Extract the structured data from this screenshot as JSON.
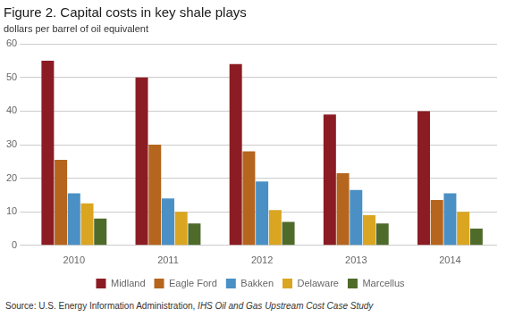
{
  "chart_data": {
    "type": "bar",
    "title": "Figure 2. Capital costs in key shale plays",
    "subtitle": "dollars per barrel of oil equivalent",
    "source": [
      "Source: U.S. Energy Information Administration, ",
      "IHS Oil and Gas Upstream Cost Case Study"
    ],
    "categories": [
      "2010",
      "2011",
      "2012",
      "2013",
      "2014"
    ],
    "series": [
      {
        "name": "Midland",
        "color": "#8B1C24",
        "values": [
          55,
          50,
          54,
          39,
          40
        ]
      },
      {
        "name": "Eagle Ford",
        "color": "#B5651D",
        "values": [
          25.5,
          30,
          28,
          21.5,
          13.5
        ]
      },
      {
        "name": "Bakken",
        "color": "#4A90C4",
        "values": [
          15.5,
          14,
          19,
          16.5,
          15.5
        ]
      },
      {
        "name": "Delaware",
        "color": "#DAA520",
        "values": [
          12.5,
          10,
          10.5,
          9,
          10
        ]
      },
      {
        "name": "Marcellus",
        "color": "#4F6B2A",
        "values": [
          8,
          6.5,
          7,
          6.5,
          5
        ]
      }
    ],
    "ylim": [
      0,
      60
    ],
    "yticks": [
      0,
      10,
      20,
      30,
      40,
      50,
      60
    ],
    "grid": true,
    "legend": "bottom"
  }
}
